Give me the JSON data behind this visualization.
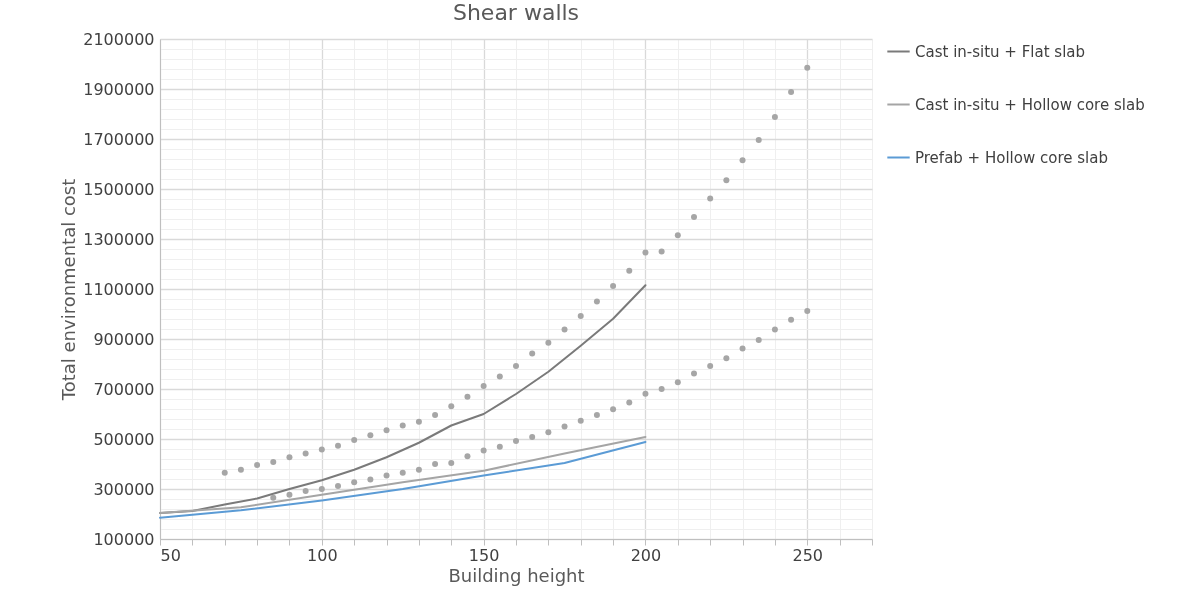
{
  "chart_data": {
    "type": "line",
    "title": "Shear walls",
    "xlabel": "Building height",
    "ylabel": "Total environmental cost",
    "xlim": [
      50,
      270
    ],
    "ylim": [
      100000,
      2100000
    ],
    "xticks": [
      50,
      {
        "value": 60,
        "label": null
      },
      {
        "value": 70,
        "label": null
      },
      {
        "value": 80,
        "label": null
      },
      {
        "value": 90,
        "label": null
      },
      100,
      {
        "value": 110,
        "label": null
      },
      {
        "value": 120,
        "label": null
      },
      {
        "value": 130,
        "label": null
      },
      {
        "value": 140,
        "label": null
      },
      150,
      {
        "value": 160,
        "label": null
      },
      {
        "value": 170,
        "label": null
      },
      {
        "value": 180,
        "label": null
      },
      {
        "value": 190,
        "label": null
      },
      200,
      {
        "value": 210,
        "label": null
      },
      {
        "value": 220,
        "label": null
      },
      {
        "value": 230,
        "label": null
      },
      {
        "value": 240,
        "label": null
      },
      250,
      {
        "value": 260,
        "label": null
      },
      {
        "value": 270,
        "label": null
      }
    ],
    "yticks": [
      100000,
      {
        "value": 140000,
        "label": null
      },
      {
        "value": 180000,
        "label": null
      },
      {
        "value": 220000,
        "label": null
      },
      {
        "value": 260000,
        "label": null
      },
      300000,
      {
        "value": 340000,
        "label": null
      },
      {
        "value": 380000,
        "label": null
      },
      {
        "value": 420000,
        "label": null
      },
      {
        "value": 460000,
        "label": null
      },
      500000,
      {
        "value": 540000,
        "label": null
      },
      {
        "value": 580000,
        "label": null
      },
      {
        "value": 620000,
        "label": null
      },
      {
        "value": 660000,
        "label": null
      },
      700000,
      {
        "value": 740000,
        "label": null
      },
      {
        "value": 780000,
        "label": null
      },
      {
        "value": 820000,
        "label": null
      },
      {
        "value": 860000,
        "label": null
      },
      900000,
      {
        "value": 940000,
        "label": null
      },
      {
        "value": 980000,
        "label": null
      },
      {
        "value": 1020000,
        "label": null
      },
      {
        "value": 1060000,
        "label": null
      },
      1100000,
      {
        "value": 1140000,
        "label": null
      },
      {
        "value": 1180000,
        "label": null
      },
      {
        "value": 1220000,
        "label": null
      },
      {
        "value": 1260000,
        "label": null
      },
      1300000,
      {
        "value": 1340000,
        "label": null
      },
      {
        "value": 1380000,
        "label": null
      },
      {
        "value": 1420000,
        "label": null
      },
      {
        "value": 1460000,
        "label": null
      },
      1500000,
      {
        "value": 1540000,
        "label": null
      },
      {
        "value": 1580000,
        "label": null
      },
      {
        "value": 1620000,
        "label": null
      },
      {
        "value": 1660000,
        "label": null
      },
      1700000,
      {
        "value": 1740000,
        "label": null
      },
      {
        "value": 1780000,
        "label": null
      },
      {
        "value": 1820000,
        "label": null
      },
      {
        "value": 1860000,
        "label": null
      },
      1900000,
      {
        "value": 1940000,
        "label": null
      },
      {
        "value": 1980000,
        "label": null
      },
      {
        "value": 2020000,
        "label": null
      },
      {
        "value": 2060000,
        "label": null
      },
      2100000
    ],
    "grid": true,
    "legend": "top right",
    "series": [
      {
        "name": "Cast in-situ + Flat slab",
        "color": "#7a7a7a",
        "x": [
          50,
          60,
          70,
          80,
          90,
          100,
          110,
          120,
          130,
          140,
          150,
          160,
          170,
          180,
          190,
          200
        ],
        "values": [
          204000,
          212000,
          238000,
          262000,
          300000,
          335000,
          377000,
          427000,
          485000,
          554000,
          600000,
          680000,
          769000,
          873000,
          981000,
          1115000
        ]
      },
      {
        "name": "Cast in-situ + Hollow core slab",
        "color": "#a5a5a5",
        "x": [
          50,
          75,
          100,
          125,
          150,
          175,
          200
        ],
        "values": [
          204000,
          227000,
          277000,
          327000,
          373000,
          442000,
          508000
        ]
      },
      {
        "name": "Prefab + Hollow core slab",
        "color": "#5b9bd5",
        "x": [
          50,
          75,
          100,
          125,
          150,
          175,
          200
        ],
        "values": [
          185000,
          215000,
          254000,
          300000,
          354000,
          404000,
          488000
        ]
      },
      {
        "type": "scatter",
        "marker": "circle",
        "color": "#a6a6a6",
        "x": [
          70,
          75,
          80,
          85,
          90,
          95,
          100,
          105,
          110,
          115,
          120,
          125,
          130,
          135,
          140,
          145,
          150,
          155,
          160,
          165,
          170,
          175,
          180,
          185,
          190,
          195,
          200,
          205,
          210,
          215,
          220,
          225,
          230,
          235,
          240,
          245,
          250
        ],
        "values": [
          365000,
          377000,
          396000,
          408000,
          427000,
          442000,
          458000,
          473000,
          496000,
          515000,
          535000,
          554000,
          569000,
          596000,
          631000,
          669000,
          712000,
          750000,
          792000,
          842000,
          885000,
          938000,
          992000,
          1050000,
          1112000,
          1173000,
          1246000,
          1250000,
          1315000,
          1388000,
          1462000,
          1535000,
          1615000,
          1696000,
          1788000,
          1888000,
          1985000
        ]
      },
      {
        "type": "scatter",
        "marker": "circle",
        "color": "#a6a6a6",
        "x": [
          85,
          90,
          95,
          100,
          105,
          110,
          115,
          120,
          125,
          130,
          135,
          140,
          145,
          150,
          155,
          160,
          165,
          170,
          175,
          180,
          185,
          190,
          195,
          200,
          205,
          210,
          215,
          220,
          225,
          230,
          235,
          240,
          245,
          250
        ],
        "values": [
          265000,
          277000,
          292000,
          300000,
          312000,
          327000,
          338000,
          354000,
          365000,
          377000,
          400000,
          404000,
          431000,
          454000,
          469000,
          492000,
          508000,
          527000,
          550000,
          573000,
          596000,
          619000,
          646000,
          681000,
          700000,
          727000,
          762000,
          792000,
          823000,
          862000,
          896000,
          938000,
          977000,
          1012000
        ]
      }
    ]
  }
}
